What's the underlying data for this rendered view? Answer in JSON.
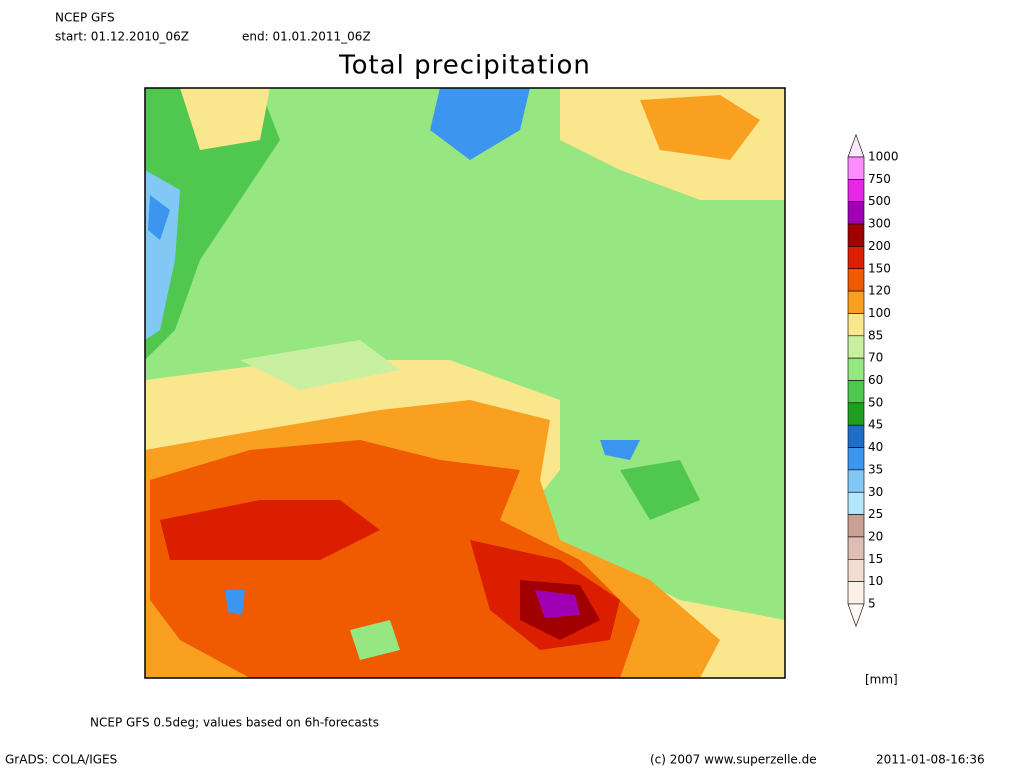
{
  "header": {
    "model": "NCEP GFS",
    "start": "start: 01.12.2010_06Z",
    "end": "end: 01.01.2011_06Z",
    "title": "Total precipitation"
  },
  "legend": {
    "unit": "[mm]",
    "labels": [
      "1000",
      "750",
      "500",
      "300",
      "200",
      "150",
      "120",
      "100",
      "85",
      "70",
      "60",
      "50",
      "45",
      "40",
      "35",
      "30",
      "25",
      "20",
      "15",
      "10",
      "5"
    ],
    "colors": [
      "#ffe8ff",
      "#ff8cff",
      "#e628e6",
      "#a000b4",
      "#a00000",
      "#dc1e00",
      "#f05a00",
      "#faa020",
      "#fae68c",
      "#c8f0a0",
      "#96e682",
      "#50c850",
      "#1ea01e",
      "#1e6ec8",
      "#3c96f0",
      "#82c8f5",
      "#b4e6fa",
      "#c8a096",
      "#dcbeb4",
      "#f0dcd2",
      "#faf0e8",
      "#fffaf5"
    ]
  },
  "footer": {
    "note": "NCEP GFS 0.5deg; values based on 6h-forecasts",
    "software": "GrADS: COLA/IGES",
    "copyright": "(c) 2007 www.superzelle.de",
    "timestamp": "2011-01-08-16:36"
  }
}
